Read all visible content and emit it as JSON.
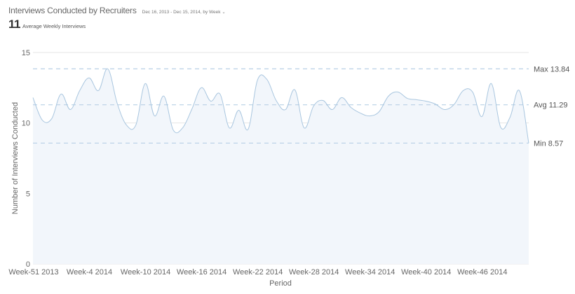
{
  "header": {
    "title": "Interviews Conducted by Recruiters",
    "date_range": "Dec 16, 2013 - Dec 15, 2014, by Week",
    "dropdown_icon": "chevron-down-icon",
    "kpi_value": "11",
    "kpi_label": "Average Weekly Interviews"
  },
  "colors": {
    "line": "#a9c6df",
    "area_fill": "#f2f6fb",
    "reference_line": "#b8d0e6",
    "gridline": "#e6e6e6"
  },
  "chart_data": {
    "type": "area",
    "title": "Interviews Conducted by Recruiters",
    "xlabel": "Period",
    "ylabel": "Number of Interviews Conducted",
    "ylim": [
      0,
      15
    ],
    "yticks": [
      0,
      5,
      10,
      15
    ],
    "grid": true,
    "legend": "none",
    "x_tick_labels": [
      "Week-51 2013",
      "Week-4 2014",
      "Week-10 2014",
      "Week-16 2014",
      "Week-22 2014",
      "Week-28 2014",
      "Week-34 2014",
      "Week-40 2014",
      "Week-46 2014"
    ],
    "x_tick_every": 6,
    "values": [
      11.8,
      10.2,
      10.3,
      12.05,
      10.95,
      12.3,
      13.2,
      12.3,
      13.84,
      11.4,
      9.85,
      9.85,
      12.8,
      10.5,
      11.9,
      9.5,
      9.65,
      11.0,
      12.5,
      11.55,
      12.05,
      9.65,
      10.9,
      9.55,
      13.05,
      13.1,
      11.6,
      10.95,
      12.35,
      9.65,
      11.2,
      11.6,
      10.95,
      11.8,
      11.1,
      10.7,
      10.5,
      10.8,
      11.9,
      12.2,
      11.75,
      11.65,
      11.55,
      11.35,
      10.95,
      11.3,
      12.3,
      12.2,
      10.45,
      12.8,
      9.7,
      10.4,
      12.3,
      8.57
    ],
    "reference_lines": [
      {
        "name": "Max",
        "value": 13.84,
        "label": "Max 13.84"
      },
      {
        "name": "Avg",
        "value": 11.29,
        "label": "Avg 11.29"
      },
      {
        "name": "Min",
        "value": 8.57,
        "label": "Min 8.57"
      }
    ]
  }
}
